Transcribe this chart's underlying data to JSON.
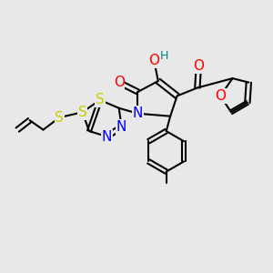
{
  "background_color": "#e8e8e8",
  "bond_color": "#000000",
  "atom_colors": {
    "S": "#cccc00",
    "N": "#0000ff",
    "O": "#ff0000",
    "H": "#008080",
    "C": "#000000"
  },
  "line_width": 1.5,
  "font_size": 11
}
